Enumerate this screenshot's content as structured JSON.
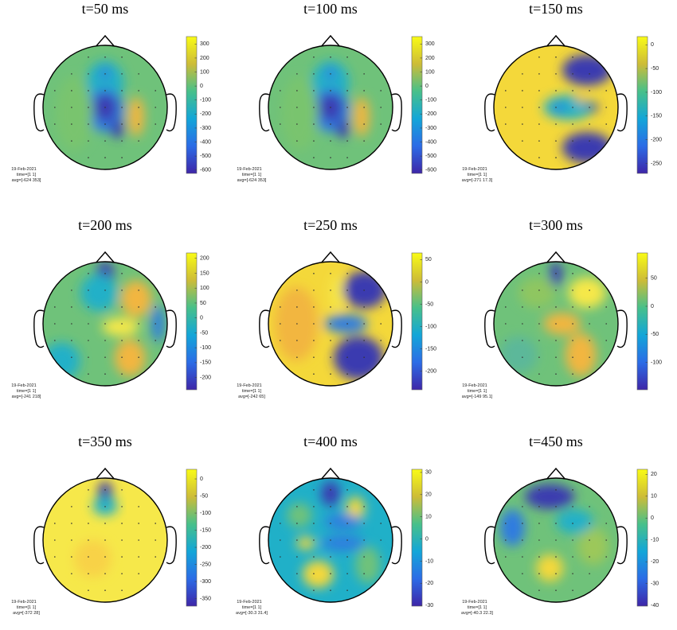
{
  "panels": [
    {
      "title": "t=50 ms",
      "clim": [
        -624,
        353
      ],
      "ticks": [
        300,
        200,
        100,
        0,
        -100,
        -200,
        -300,
        -400,
        -500,
        -600
      ],
      "info": [
        "19-Feb-2021",
        "time=[1 1]",
        "avg=[-624 353]"
      ]
    },
    {
      "title": "t=100 ms",
      "clim": [
        -624,
        353
      ],
      "ticks": [
        300,
        200,
        100,
        0,
        -100,
        -200,
        -300,
        -400,
        -500,
        -600
      ],
      "info": [
        "19-Feb-2021",
        "time=[1 1]",
        "avg=[-624 353]"
      ]
    },
    {
      "title": "t=150 ms",
      "clim": [
        -271,
        17.3
      ],
      "ticks": [
        0,
        -50,
        -100,
        -150,
        -200,
        -250
      ],
      "info": [
        "19-Feb-2021",
        "time=[1 1]",
        "avg=[-271 17.3]"
      ]
    },
    {
      "title": "t=200 ms",
      "clim": [
        -241,
        218
      ],
      "ticks": [
        200,
        150,
        100,
        50,
        0,
        -50,
        -100,
        -150,
        -200
      ],
      "info": [
        "19-Feb-2021",
        "time=[1 1]",
        "avg=[-241 218]"
      ]
    },
    {
      "title": "t=250 ms",
      "clim": [
        -242,
        65
      ],
      "ticks": [
        50,
        0,
        -50,
        -100,
        -150,
        -200
      ],
      "info": [
        "19-Feb-2021",
        "time=[1 1]",
        "avg=[-242 65]"
      ]
    },
    {
      "title": "t=300 ms",
      "clim": [
        -149,
        95.1
      ],
      "ticks": [
        50,
        0,
        -50,
        -100
      ],
      "info": [
        "19-Feb-2021",
        "time=[1 1]",
        "avg=[-149 95.1]"
      ]
    },
    {
      "title": "t=350 ms",
      "clim": [
        -372,
        28
      ],
      "ticks": [
        0,
        -50,
        -100,
        -150,
        -200,
        -250,
        -300,
        -350
      ],
      "info": [
        "19-Feb-2021",
        "time=[1 1]",
        "avg=[-372 28]"
      ]
    },
    {
      "title": "t=400 ms",
      "clim": [
        -30.3,
        31.4
      ],
      "ticks": [
        30,
        20,
        10,
        0,
        -10,
        -20,
        -30
      ],
      "info": [
        "19-Feb-2021",
        "time=[1 1]",
        "avg=[-30.3 31.4]"
      ]
    },
    {
      "title": "t=450 ms",
      "clim": [
        -40.3,
        22.3
      ],
      "ticks": [
        20,
        10,
        0,
        -10,
        -20,
        -30,
        -40
      ],
      "info": [
        "19-Feb-2021",
        "time=[1 1]",
        "avg=[-40.3 22.3]"
      ]
    }
  ]
}
